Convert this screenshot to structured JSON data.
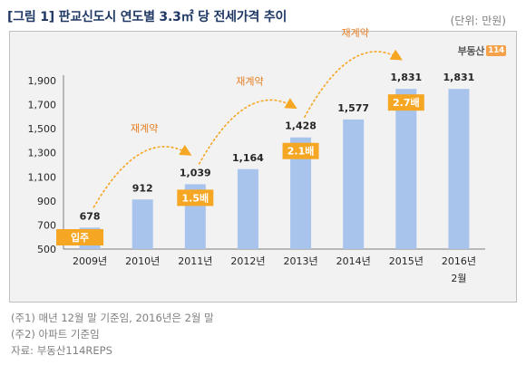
{
  "figure": {
    "title": "[그림 1] 판교신도시 연도별 3.3㎡ 당 전세가격 추이",
    "unit": "(단위: 만원)",
    "logo_text": "부동산",
    "logo_num": "114"
  },
  "chart_data": {
    "type": "bar",
    "categories": [
      "2009년",
      "2010년",
      "2011년",
      "2012년",
      "2013년",
      "2014년",
      "2015년",
      "2016년"
    ],
    "category_sublabels": [
      "",
      "",
      "",
      "",
      "",
      "",
      "",
      "2월"
    ],
    "values": [
      678,
      912,
      1039,
      1164,
      1428,
      1577,
      1831,
      1831
    ],
    "data_labels": [
      "678",
      "912",
      "1,039",
      "1,164",
      "1,428",
      "1,577",
      "1,831",
      "1,831"
    ],
    "ylim": [
      500,
      1900
    ],
    "yticks": [
      500,
      700,
      900,
      1100,
      1300,
      1500,
      1700,
      1900
    ],
    "ytick_labels": [
      "500",
      "700",
      "900",
      "1,100",
      "1,300",
      "1,500",
      "1,700",
      "1,900"
    ],
    "bar_color": "#a9c4ec",
    "highlight_color": "#f5a623",
    "badges": [
      {
        "text": "입주",
        "category_index": 0
      },
      {
        "text": "1.5배",
        "category_index": 2
      },
      {
        "text": "2.1배",
        "category_index": 4
      },
      {
        "text": "2.7배",
        "category_index": 6
      }
    ],
    "annotations": [
      {
        "text": "재계약",
        "from": 0,
        "to": 2
      },
      {
        "text": "재계약",
        "from": 2,
        "to": 4
      },
      {
        "text": "재계약",
        "from": 4,
        "to": 6
      }
    ]
  },
  "notes": [
    "(주1) 매년 12월 말 기준임, 2016년은 2월 말",
    "(주2) 아파트 기준임",
    "자료: 부동산114REPS"
  ]
}
